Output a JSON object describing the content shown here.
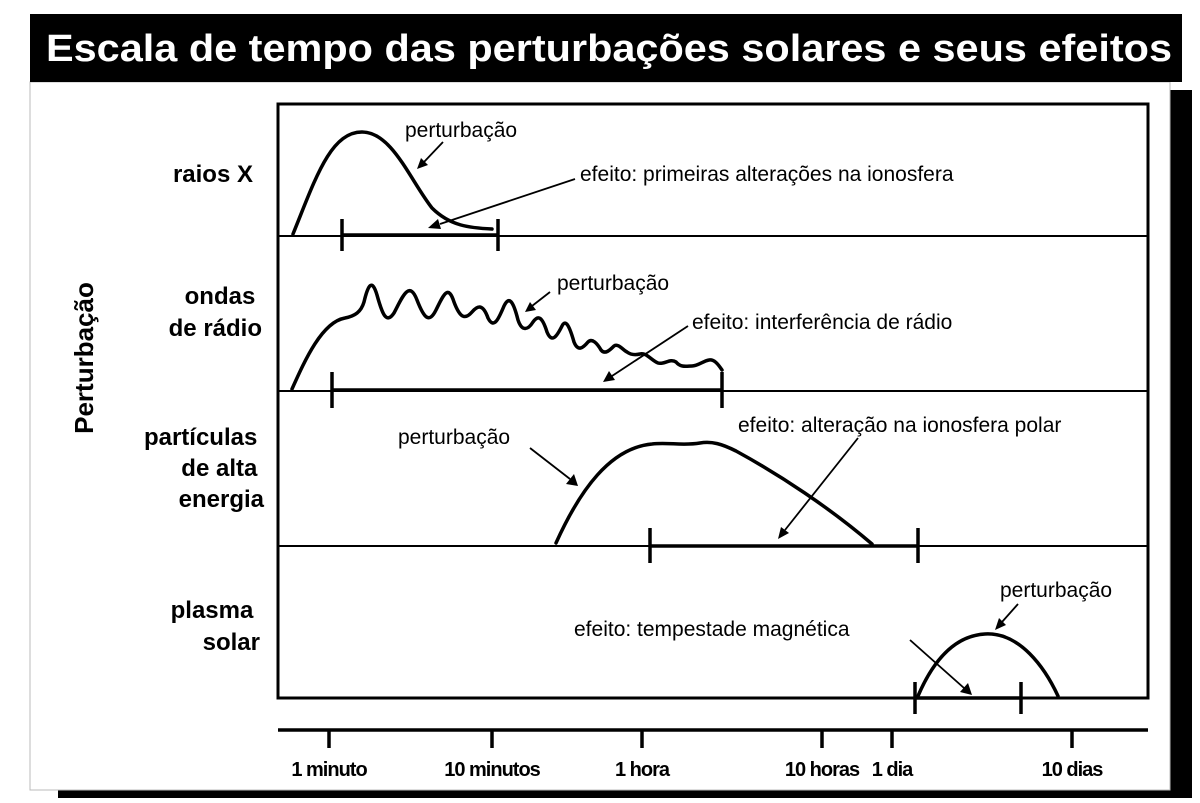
{
  "title": "Escala de tempo das perturbações solares e seus efeitos",
  "y_axis_label": "Perturbação",
  "rows": [
    {
      "label_lines": [
        "raios X"
      ],
      "disturbance_label": "perturbação",
      "effect_label": "efeito: primeiras alterações na ionosfera"
    },
    {
      "label_lines": [
        "ondas",
        "de rádio"
      ],
      "disturbance_label": "perturbação",
      "effect_label": "efeito: interferência de rádio"
    },
    {
      "label_lines": [
        "partículas",
        "de alta",
        "energia"
      ],
      "disturbance_label": "perturbação",
      "effect_label": "efeito: alteração na ionosfera polar"
    },
    {
      "label_lines": [
        "plasma",
        "solar"
      ],
      "disturbance_label": "perturbação",
      "effect_label": "efeito: tempestade magnética"
    }
  ],
  "time_axis": {
    "ticks": [
      "1 minuto",
      "10 minutos",
      "1 hora",
      "10 horas",
      "1 dia",
      "10 dias"
    ]
  },
  "colors": {
    "ink": "#000000",
    "background": "#ffffff",
    "title_text": "#ffffff"
  }
}
